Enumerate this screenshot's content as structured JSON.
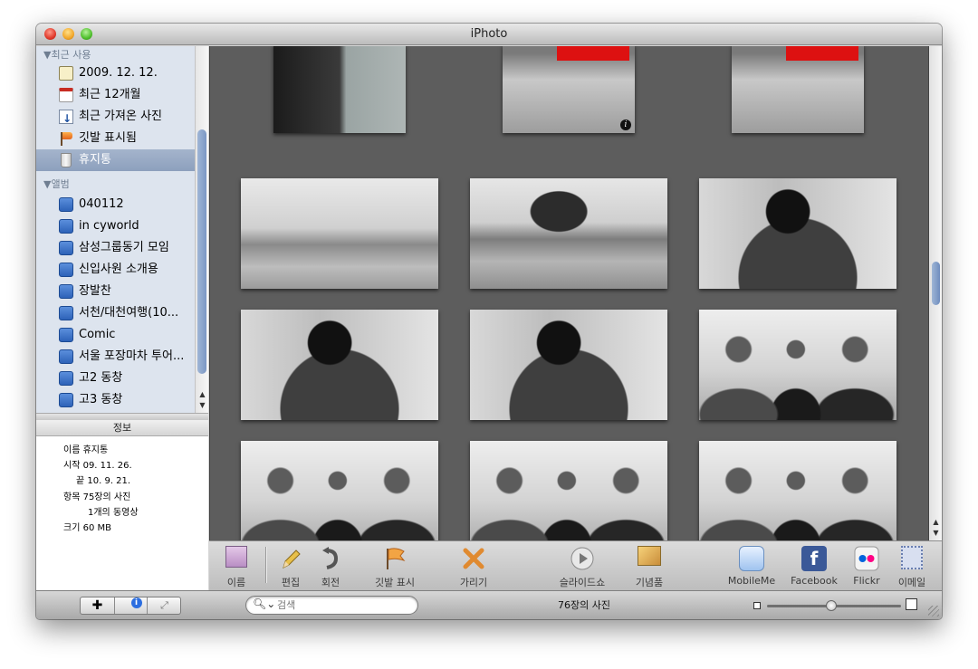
{
  "window": {
    "title": "iPhoto"
  },
  "sidebar": {
    "recent_header": "▼최근 사용",
    "recent": [
      {
        "label": "2009. 12. 12.",
        "icon": "event-icon"
      },
      {
        "label": "최근 12개월",
        "icon": "calendar-icon"
      },
      {
        "label": "최근 가져온 사진",
        "icon": "import-icon"
      },
      {
        "label": "깃발 표시됨",
        "icon": "flag-icon"
      },
      {
        "label": "휴지통",
        "icon": "trash-icon",
        "selected": true
      }
    ],
    "albums_header": "▼앨범",
    "albums": [
      "040112",
      "in cyworld",
      "삼성그룹동기 모임",
      "신입사원 소개용",
      "장발찬",
      "서천/대천여행(10...",
      "Comic",
      "서울 포장마차 투어...",
      "고2 동창",
      "고3 동창"
    ]
  },
  "info": {
    "title": "정보",
    "name_line": "이름 휴지통",
    "start_line": "시작 09. 11. 26.",
    "end_line": "끝 10. 9. 21.",
    "items_line": "항목 75장의 사진",
    "videos_line": "1개의 동영상",
    "size_line": "크기 60 MB"
  },
  "toolbar": {
    "name": "이름",
    "edit": "편집",
    "rotate": "회전",
    "flag": "깃발 표시",
    "hide": "가리기",
    "slideshow": "슬라이드쇼",
    "keepsakes": "기념품",
    "mobileme": "MobileMe",
    "facebook": "Facebook",
    "flickr": "Flickr",
    "email": "이메일"
  },
  "bottom": {
    "search_placeholder": "검색",
    "photo_count": "76장의 사진"
  },
  "colors": {
    "main_bg": "#5d5d5d",
    "selection": "#8da0bd",
    "sidebar_bg": "#dde4ee"
  }
}
